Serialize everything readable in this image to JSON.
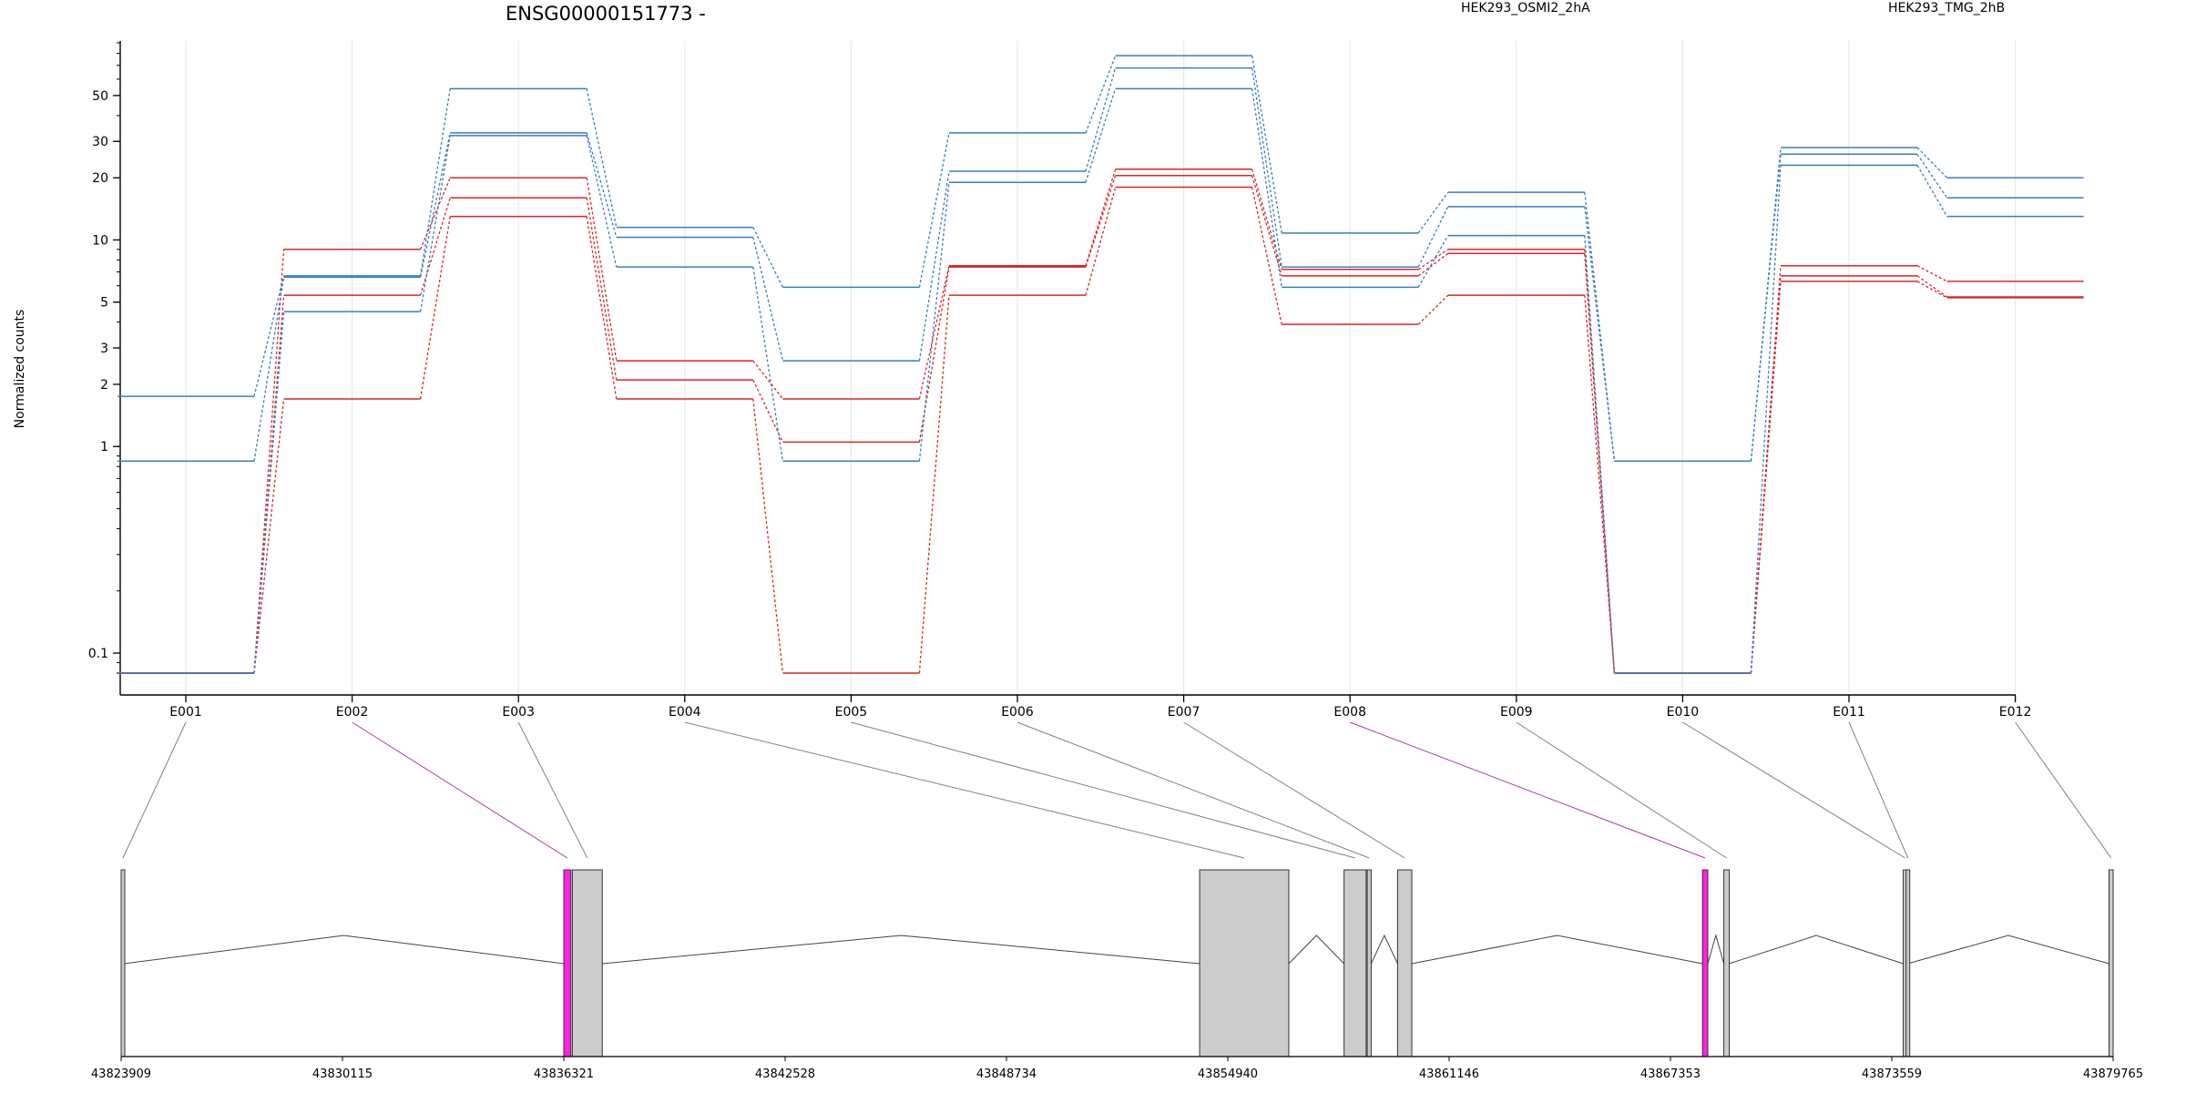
{
  "chart_data": {
    "type": "line",
    "title": "ENSG00000151773 -",
    "ylabel": "Normalized counts",
    "xlabel": "",
    "y_scale": "log",
    "ylim": [
      0.08,
      90
    ],
    "yticks": [
      0.1,
      1,
      2,
      3,
      5,
      10,
      20,
      30,
      50
    ],
    "grid": true,
    "legend_placement": "top",
    "categories": [
      "E001",
      "E002",
      "E003",
      "E004",
      "E005",
      "E006",
      "E007",
      "E008",
      "E009",
      "E010",
      "E011",
      "E012"
    ],
    "groups": [
      {
        "name": "HEK293_OSMI2_2hA",
        "color": "#d62728"
      },
      {
        "name": "HEK293_TMG_2hB",
        "color": "#3b7dbf"
      }
    ],
    "series": [
      {
        "group": 0,
        "values": [
          0.08,
          9,
          20,
          2.6,
          1.7,
          7.5,
          22,
          7.2,
          9,
          0.08,
          7.5,
          6.3
        ]
      },
      {
        "group": 0,
        "values": [
          0.08,
          5.4,
          16,
          2.1,
          1.05,
          7.4,
          20.5,
          6.7,
          8.6,
          0.08,
          6.7,
          5.3
        ]
      },
      {
        "group": 0,
        "values": [
          0.08,
          1.7,
          13,
          1.7,
          0.08,
          5.4,
          18,
          3.9,
          5.4,
          0.08,
          6.3,
          5.25
        ]
      },
      {
        "group": 1,
        "values": [
          1.75,
          6.7,
          54,
          11.5,
          5.9,
          33,
          78,
          10.8,
          17,
          0.85,
          28,
          20
        ]
      },
      {
        "group": 1,
        "values": [
          0.85,
          6.6,
          33,
          10.3,
          2.6,
          21.5,
          68,
          7.4,
          14.5,
          0.85,
          26,
          16
        ]
      },
      {
        "group": 1,
        "values": [
          0.08,
          4.5,
          32,
          7.4,
          0.85,
          19,
          54,
          5.9,
          10.5,
          0.08,
          23,
          13
        ]
      }
    ]
  },
  "gene_model": {
    "coordinate_labels": [
      "43823909",
      "43830115",
      "43836321",
      "43842528",
      "43848734",
      "43854940",
      "43861146",
      "43867353",
      "43873559",
      "43879765"
    ],
    "coord_min": 43823909,
    "coord_max": 43879765,
    "exons": [
      {
        "id": "E001",
        "start": 43823909,
        "end": 43823985,
        "color": "#cccccc"
      },
      {
        "id": "E002",
        "start": 43836321,
        "end": 43836520,
        "color": "#ff22dd"
      },
      {
        "id": "E003",
        "start": 43836560,
        "end": 43837400,
        "color": "#cccccc"
      },
      {
        "id": "E004",
        "start": 43854150,
        "end": 43856650,
        "color": "#cccccc"
      },
      {
        "id": "E005",
        "start": 43858200,
        "end": 43858820,
        "color": "#cccccc"
      },
      {
        "id": "E006",
        "start": 43858850,
        "end": 43858960,
        "color": "#cccccc"
      },
      {
        "id": "E007",
        "start": 43859700,
        "end": 43860100,
        "color": "#cccccc"
      },
      {
        "id": "E008",
        "start": 43868250,
        "end": 43868400,
        "color": "#ff22dd"
      },
      {
        "id": "E009",
        "start": 43868850,
        "end": 43869000,
        "color": "#cccccc"
      },
      {
        "id": "E010",
        "start": 43873880,
        "end": 43873940,
        "color": "#cccccc"
      },
      {
        "id": "E011",
        "start": 43873960,
        "end": 43874000,
        "color": "#cccccc"
      },
      {
        "id": "E012",
        "start": 43879650,
        "end": 43879765,
        "color": "#cccccc"
      }
    ],
    "highlight_color": "#a040a0",
    "connector_color": "#808080"
  }
}
